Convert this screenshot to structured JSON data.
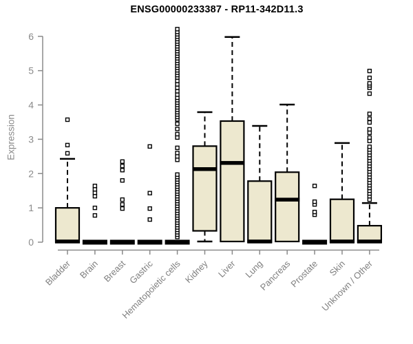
{
  "colors": {
    "box_fill": "#EDE8CF",
    "box_stroke": "#000000",
    "axis": "#8a8a8a",
    "tick_label": "#8a8a8a",
    "category_label": "#7f7f7f",
    "title": "#000000",
    "background": "#ffffff"
  },
  "chart_data": {
    "type": "boxplot",
    "title": "ENSG00000233387 - RP11-342D11.3",
    "xlabel": "",
    "ylabel": "Expression",
    "ylim": [
      0,
      6
    ],
    "yticks": [
      0,
      1,
      2,
      3,
      4,
      5,
      6
    ],
    "grid": false,
    "legend": "none",
    "categories": [
      "Bladder",
      "Brain",
      "Breast",
      "Gastric",
      "Hematopoietic cells",
      "Kidney",
      "Liver",
      "Lung",
      "Pancreas",
      "Prostate",
      "Skin",
      "Unknown / Other"
    ],
    "series": [
      {
        "category": "Bladder",
        "q1": 0,
        "median": 0.02,
        "q3": 1.0,
        "whisker_low": 0,
        "whisker_high": 2.43,
        "outliers": [
          2.59,
          2.83,
          3.57
        ]
      },
      {
        "category": "Brain",
        "q1": 0,
        "median": 0,
        "q3": 0,
        "whisker_low": 0,
        "whisker_high": 0,
        "outliers": [
          0.78,
          1.0,
          1.34,
          1.44,
          1.54,
          1.64
        ]
      },
      {
        "category": "Breast",
        "q1": 0,
        "median": 0,
        "q3": 0,
        "whisker_low": 0,
        "whisker_high": 0,
        "outliers": [
          0.98,
          1.1,
          1.24,
          1.8,
          2.1,
          2.22,
          2.35
        ]
      },
      {
        "category": "Gastric",
        "q1": 0,
        "median": 0,
        "q3": 0,
        "whisker_low": 0,
        "whisker_high": 0,
        "outliers": [
          0.66,
          0.98,
          1.43,
          2.79
        ]
      },
      {
        "category": "Hematopoietic cells",
        "q1": 0,
        "median": 0,
        "q3": 0,
        "whisker_low": 0,
        "whisker_high": 0,
        "outliers": [
          0.15,
          0.22,
          0.29,
          0.36,
          0.43,
          0.5,
          0.57,
          0.64,
          0.71,
          0.78,
          0.85,
          0.92,
          0.99,
          1.06,
          1.13,
          1.2,
          1.27,
          1.34,
          1.41,
          1.48,
          1.55,
          1.62,
          1.69,
          1.76,
          1.83,
          1.9,
          1.97,
          2.4,
          2.5,
          2.6,
          2.75,
          3.05,
          3.15,
          3.3,
          3.45,
          3.58,
          3.65,
          3.72,
          3.79,
          3.86,
          3.93,
          4.0,
          4.07,
          4.14,
          4.21,
          4.3,
          4.4,
          4.5,
          4.6,
          4.7,
          4.8,
          4.87,
          4.94,
          5.01,
          5.08,
          5.15,
          5.22,
          5.29,
          5.36,
          5.43,
          5.5,
          5.57,
          5.64,
          5.71,
          5.78,
          5.85,
          5.92,
          5.99,
          6.06,
          6.13,
          6.21
        ]
      },
      {
        "category": "Kidney",
        "q1": 0.33,
        "median": 2.13,
        "q3": 2.8,
        "whisker_low": 0.02,
        "whisker_high": 3.79,
        "outliers": []
      },
      {
        "category": "Liver",
        "q1": 0.02,
        "median": 2.31,
        "q3": 3.53,
        "whisker_low": 0.02,
        "whisker_high": 5.98,
        "outliers": []
      },
      {
        "category": "Lung",
        "q1": 0,
        "median": 0.02,
        "q3": 1.78,
        "whisker_low": 0,
        "whisker_high": 3.39,
        "outliers": []
      },
      {
        "category": "Pancreas",
        "q1": 0.02,
        "median": 1.24,
        "q3": 2.04,
        "whisker_low": 0.02,
        "whisker_high": 4.01,
        "outliers": []
      },
      {
        "category": "Prostate",
        "q1": 0,
        "median": 0,
        "q3": 0,
        "whisker_low": 0,
        "whisker_high": 0,
        "outliers": [
          0.8,
          0.88,
          1.1,
          1.18,
          1.64
        ]
      },
      {
        "category": "Skin",
        "q1": 0,
        "median": 0.02,
        "q3": 1.25,
        "whisker_low": 0,
        "whisker_high": 2.89,
        "outliers": []
      },
      {
        "category": "Unknown / Other",
        "q1": 0,
        "median": 0.02,
        "q3": 0.48,
        "whisker_low": 0,
        "whisker_high": 1.14,
        "outliers": [
          1.24,
          1.34,
          1.42,
          1.5,
          1.58,
          1.66,
          1.74,
          1.82,
          1.9,
          1.98,
          2.06,
          2.14,
          2.22,
          2.3,
          2.38,
          2.46,
          2.54,
          2.62,
          2.7,
          2.78,
          2.95,
          3.05,
          3.19,
          3.29,
          3.49,
          3.6,
          3.74,
          4.33,
          4.5,
          4.57,
          4.63,
          4.79,
          4.99
        ]
      }
    ]
  }
}
